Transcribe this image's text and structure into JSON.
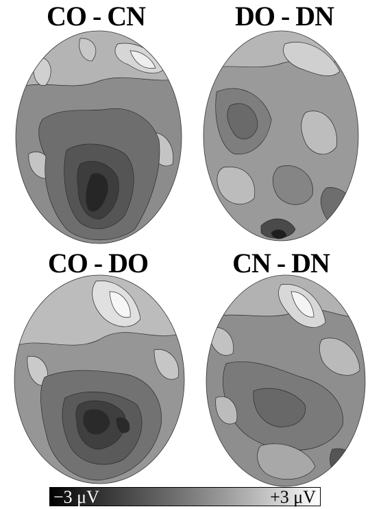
{
  "panels": [
    {
      "title": "CO - CN"
    },
    {
      "title": "DO - DN"
    },
    {
      "title": "CO - DO"
    },
    {
      "title": "CN - DN"
    }
  ],
  "colorbar": {
    "min_label": "−3 μV",
    "max_label": "+3 μV",
    "scale": "grayscale, black = negative, white = positive"
  }
}
